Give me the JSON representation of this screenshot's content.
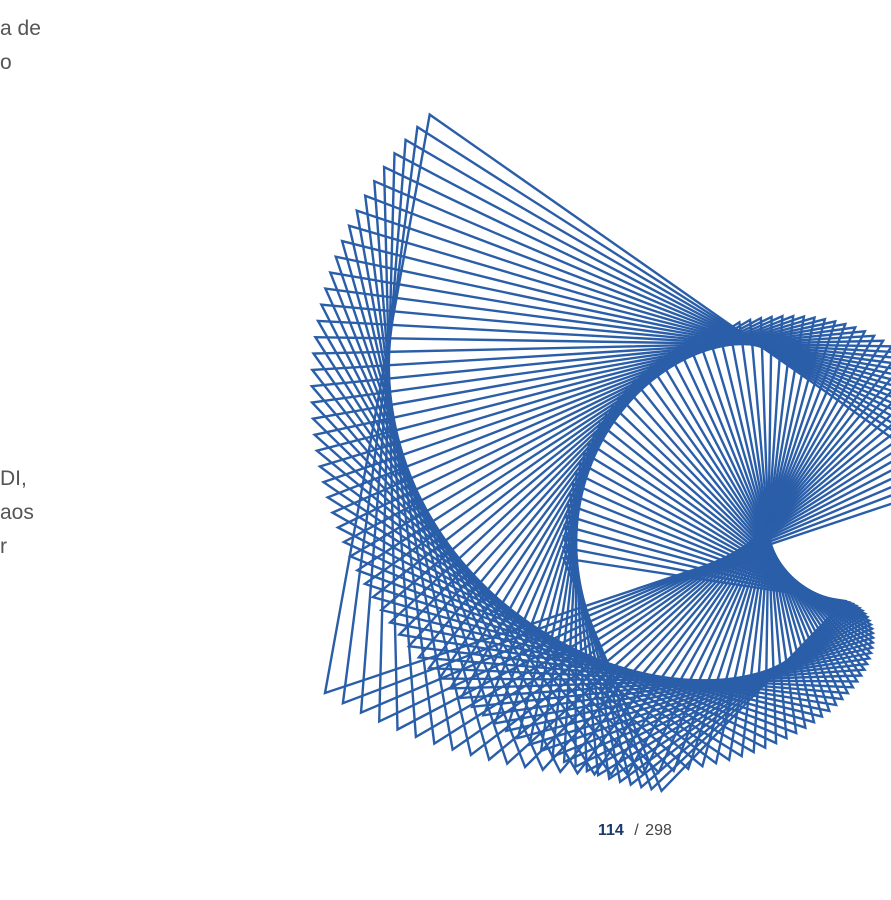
{
  "text_fragments": {
    "top_lines": [
      "a de",
      "o"
    ],
    "mid_lines": [
      "DI,",
      "aos",
      "r"
    ]
  },
  "decoration": {
    "icon": "spiral-line-art",
    "stroke_color": "#2a5ea8"
  },
  "pagination": {
    "current": "114",
    "separator": "/",
    "total": "298"
  }
}
